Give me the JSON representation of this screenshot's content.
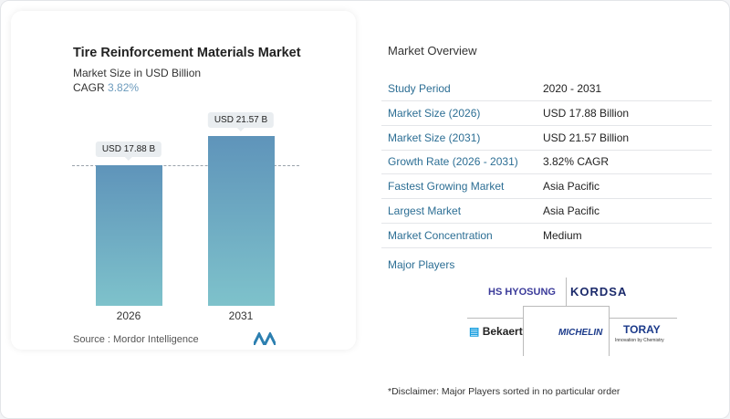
{
  "chart": {
    "title": "Tire Reinforcement Materials Market",
    "subtitle": "Market Size in USD Billion",
    "cagr_label": "CAGR",
    "cagr_value": "3.82%",
    "source": "Source :  Mordor Intelligence"
  },
  "chart_data": {
    "type": "bar",
    "categories": [
      "2026",
      "2031"
    ],
    "values": [
      17.88,
      21.57
    ],
    "data_labels": [
      "USD 17.88 B",
      "USD 21.57 B"
    ],
    "title": "Tire Reinforcement Materials Market",
    "ylabel": "Market Size in USD Billion",
    "colors": [
      "#5f94ba",
      "#7ec2cb"
    ]
  },
  "overview": {
    "title": "Market Overview",
    "rows": [
      {
        "label": "Study Period",
        "value": "2020 - 2031"
      },
      {
        "label": "Market Size (2026)",
        "value": "USD 17.88 Billion"
      },
      {
        "label": "Market Size (2031)",
        "value": "USD 21.57 Billion"
      },
      {
        "label": "Growth Rate (2026 - 2031)",
        "value": "3.82% CAGR"
      },
      {
        "label": "Fastest Growing Market",
        "value": "Asia Pacific"
      },
      {
        "label": "Largest Market",
        "value": "Asia Pacific"
      },
      {
        "label": "Market Concentration",
        "value": "Medium"
      }
    ],
    "major_players": "Major Players",
    "players": [
      "HS HYOSUNG",
      "KORDSA",
      "Bekaert",
      "MICHELIN",
      "TORAY"
    ],
    "toray_tagline": "Innovation by Chemistry",
    "disclaimer": "*Disclaimer: Major Players sorted in no particular order"
  }
}
